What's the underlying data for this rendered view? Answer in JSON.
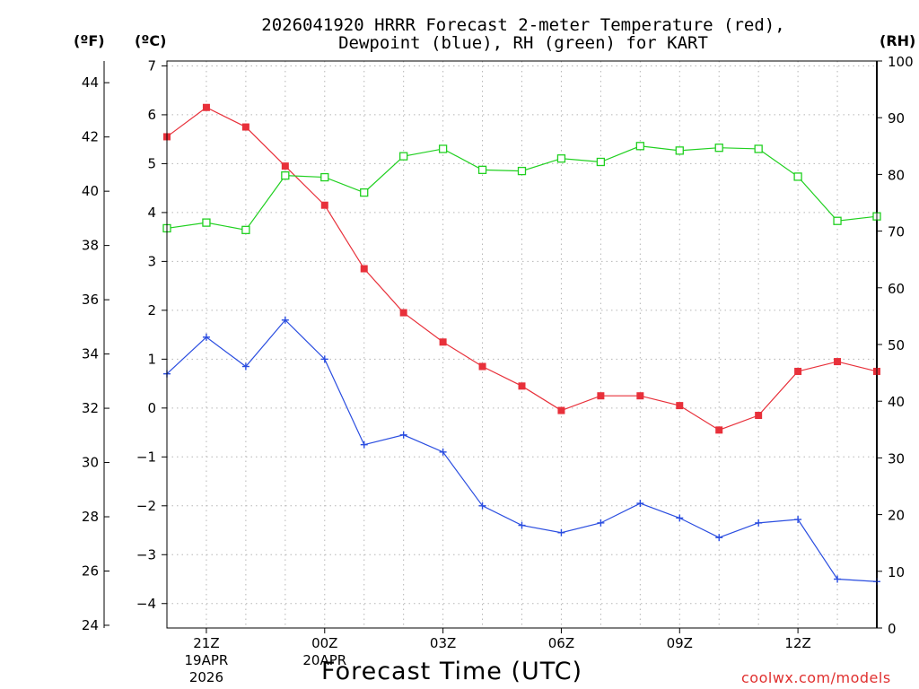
{
  "chart_data": {
    "type": "line",
    "title_lines": [
      "2026041920 HRRR Forecast 2-meter Temperature (red),",
      "Dewpoint (blue), RH (green) for KART"
    ],
    "xlabel": "Forecast Time (UTC)",
    "credit": "coolwx.com/models",
    "left_outer_unit": "(ºF)",
    "left_inner_unit": "(ºC)",
    "right_unit": "(RH)",
    "x_hours": [
      0,
      1,
      2,
      3,
      4,
      5,
      6,
      7,
      8,
      9,
      10,
      11,
      12,
      13,
      14,
      15,
      16,
      17,
      18
    ],
    "xlim": [
      0,
      18
    ],
    "x_ticks": [
      {
        "hour": 1,
        "label": "21Z",
        "date": "19APR",
        "year": "2026"
      },
      {
        "hour": 4,
        "label": "00Z",
        "date": "20APR",
        "year": ""
      },
      {
        "hour": 7,
        "label": "03Z",
        "date": "",
        "year": ""
      },
      {
        "hour": 10,
        "label": "06Z",
        "date": "",
        "year": ""
      },
      {
        "hour": 13,
        "label": "09Z",
        "date": "",
        "year": ""
      },
      {
        "hour": 16,
        "label": "12Z",
        "date": "",
        "year": ""
      }
    ],
    "celsius_axis": {
      "ylim": [
        -4.5,
        7.1
      ],
      "ticks": [
        "7",
        "6",
        "5",
        "4",
        "3",
        "2",
        "1",
        "0",
        "−1",
        "−2",
        "−3",
        "−4"
      ],
      "tick_values": [
        7,
        6,
        5,
        4,
        3,
        2,
        1,
        0,
        -1,
        -2,
        -3,
        -4
      ]
    },
    "fahrenheit_axis": {
      "ylim": [
        23.9,
        44.8
      ],
      "ticks": [
        "44",
        "42",
        "40",
        "38",
        "36",
        "34",
        "32",
        "30",
        "28",
        "26",
        "24"
      ],
      "tick_values": [
        44,
        42,
        40,
        38,
        36,
        34,
        32,
        30,
        28,
        26,
        24
      ]
    },
    "rh_axis": {
      "ylim": [
        0,
        100
      ],
      "ticks": [
        "100",
        "90",
        "80",
        "70",
        "60",
        "50",
        "40",
        "30",
        "20",
        "10",
        "0"
      ],
      "tick_values": [
        100,
        90,
        80,
        70,
        60,
        50,
        40,
        30,
        20,
        10,
        0
      ]
    },
    "series": [
      {
        "name": "Temperature",
        "axis": "celsius",
        "color": "#e8303a",
        "marker": "filled-square",
        "values": [
          5.55,
          6.15,
          5.75,
          4.95,
          4.15,
          2.85,
          1.95,
          1.35,
          0.85,
          0.45,
          -0.05,
          0.25,
          0.25,
          0.05,
          -0.45,
          -0.15,
          0.75,
          0.95,
          0.75
        ]
      },
      {
        "name": "Dewpoint",
        "axis": "celsius",
        "color": "#2a4de0",
        "marker": "plus",
        "values": [
          0.7,
          1.45,
          0.85,
          1.8,
          1.0,
          -0.75,
          -0.55,
          -0.9,
          -2.0,
          -2.4,
          -2.55,
          -2.35,
          -1.95,
          -2.25,
          -2.65,
          -2.35,
          -2.28,
          -3.5,
          -3.55
        ]
      },
      {
        "name": "RH",
        "axis": "rh",
        "color": "#20d020",
        "marker": "open-square",
        "values": [
          70.5,
          71.5,
          70.2,
          79.8,
          79.5,
          76.8,
          83.2,
          84.5,
          80.8,
          80.6,
          82.8,
          82.2,
          85.0,
          84.2,
          84.7,
          84.5,
          79.6,
          71.8,
          72.6
        ]
      }
    ]
  }
}
